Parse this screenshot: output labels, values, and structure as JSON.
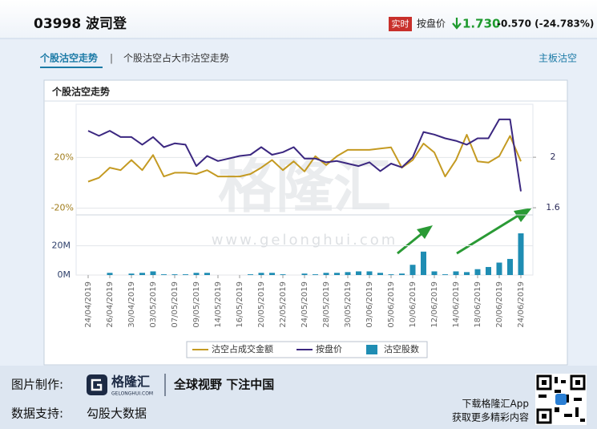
{
  "header": {
    "code_name": "03998 波司登",
    "badge": "实时",
    "price_label": "按盘价",
    "price": "1.730",
    "change": "-0.570 (-24.783%)"
  },
  "tabs": [
    "个股沽空走势",
    "个股沽空占大市沽空走势"
  ],
  "tab_separator": "|",
  "side_link": "主板沽空",
  "watermark": {
    "brand": "格隆汇",
    "url": "www.gelonghui.com"
  },
  "chart_data": [
    {
      "type": "line",
      "title": "个股沽空走势",
      "series": [
        {
          "name": "沽空占成交金额",
          "color": "#c49a22",
          "values": [
            1,
            4,
            12,
            10,
            18,
            10,
            22,
            5,
            8,
            8,
            7,
            10,
            5,
            5,
            5,
            7,
            12,
            18,
            10,
            17,
            9,
            21,
            14,
            21,
            26,
            26,
            26,
            27,
            28,
            12,
            18,
            31,
            24,
            5,
            18,
            38,
            17,
            16,
            21,
            37,
            17
          ]
        },
        {
          "name": "按盘价",
          "color": "#3b2780",
          "axis": "y2",
          "values": [
            2.21,
            2.17,
            2.21,
            2.16,
            2.16,
            2.1,
            2.16,
            2.08,
            2.11,
            2.1,
            1.93,
            2.01,
            1.97,
            1.99,
            2.01,
            2.02,
            2.08,
            2.02,
            2.04,
            2.08,
            1.99,
            1.99,
            1.96,
            1.97,
            1.95,
            1.93,
            1.96,
            1.89,
            1.95,
            1.92,
            2.0,
            2.2,
            2.18,
            2.15,
            2.13,
            2.1,
            2.15,
            2.15,
            2.3,
            2.3,
            1.73
          ]
        }
      ],
      "ylim": [
        -24,
        62
      ],
      "yticks": [
        {
          "value": 20,
          "label": "20%"
        },
        {
          "value": -20,
          "label": "-20%"
        }
      ],
      "y2lim": [
        1.556,
        2.42
      ],
      "y2ticks": [
        2,
        1.6
      ],
      "grid": true
    },
    {
      "type": "bar",
      "categories": [
        "24/04/2019",
        null,
        "26/04/2019",
        null,
        "30/04/2019",
        null,
        "03/05/2019",
        null,
        "07/05/2019",
        null,
        "09/05/2019",
        null,
        "14/05/2019",
        null,
        "16/05/2019",
        null,
        "20/05/2019",
        null,
        "22/05/2019",
        null,
        "24/05/2019",
        null,
        "28/05/2019",
        null,
        "30/05/2019",
        null,
        "03/06/2019",
        null,
        "05/06/2019",
        null,
        "10/06/2019",
        null,
        "12/06/2019",
        null,
        "14/06/2019",
        null,
        "18/06/2019",
        null,
        "20/06/2019",
        null,
        "24/06/2019"
      ],
      "series": [
        {
          "name": "沽空股数",
          "color": "#1f8db3",
          "values": [
            0,
            0,
            1.5,
            0,
            1,
            1.5,
            2.5,
            0.5,
            0.5,
            0.5,
            1.5,
            1.5,
            0,
            0,
            0,
            0.5,
            1.5,
            1.5,
            0.5,
            0,
            1,
            0.5,
            1.5,
            1.5,
            2,
            2.5,
            2.5,
            1.5,
            0.5,
            1,
            7,
            16,
            2.5,
            0.5,
            2.5,
            2,
            4,
            5.5,
            8.5,
            11,
            28.5
          ]
        }
      ],
      "ylim": [
        0,
        40
      ],
      "yticks": [
        {
          "value": 0,
          "label": "0M"
        },
        {
          "value": 20,
          "label": "20M"
        }
      ],
      "grid": true
    }
  ],
  "footer": {
    "made_by_label": "图片制作:",
    "logo_text": "格隆汇",
    "logo_sub": "GELONGHUI.COM",
    "slogan": "全球视野 下注中国",
    "data_label": "数据支持:",
    "data_source": "勾股大数据",
    "app_line1": "下载格隆汇App",
    "app_line2": "获取更多精彩内容"
  }
}
